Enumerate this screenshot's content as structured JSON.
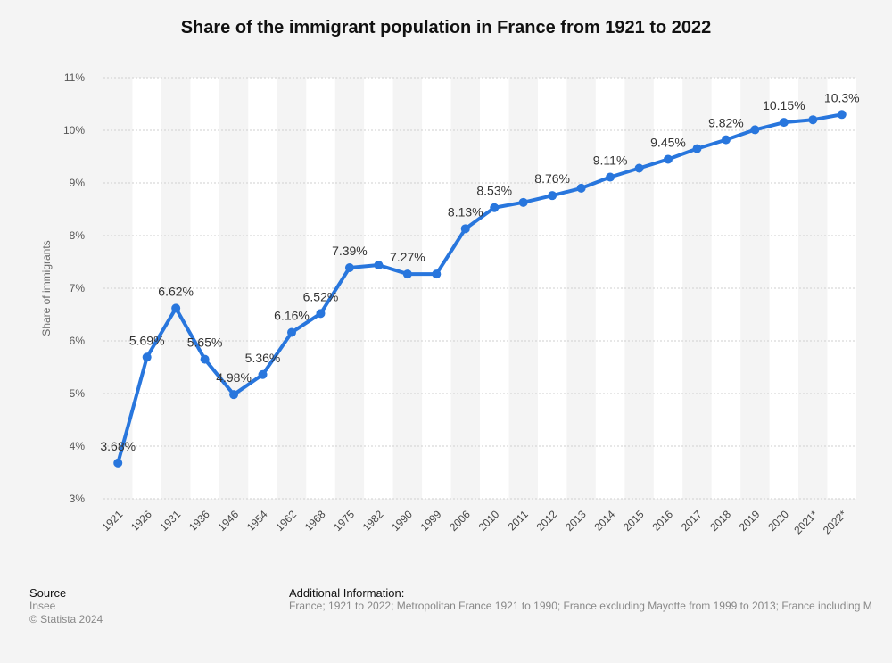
{
  "title": "Share of the immigrant population in France from 1921 to 2022",
  "footer": {
    "source_heading": "Source",
    "source_name": "Insee",
    "copyright": "© Statista 2024",
    "additional_heading": "Additional Information:",
    "additional_text": "France; 1921 to 2022; Metropolitan France 1921 to 1990; France excluding Mayotte from 1999 to 2013; France including M"
  },
  "colors": {
    "line": "#2876dd",
    "band": "#ffffff",
    "grid": "#cfcfcf",
    "background": "#f4f4f4"
  },
  "chart_data": {
    "type": "line",
    "title": "Share of the immigrant population in France from 1921 to 2022",
    "xlabel": "",
    "ylabel": "Share of immigrants",
    "ylim": [
      3,
      11
    ],
    "yticks": [
      "3%",
      "4%",
      "5%",
      "6%",
      "7%",
      "8%",
      "9%",
      "10%",
      "11%"
    ],
    "grid": true,
    "categories": [
      "1921",
      "1926",
      "1931",
      "1936",
      "1946",
      "1954",
      "1962",
      "1968",
      "1975",
      "1982",
      "1990",
      "1999",
      "2006",
      "2010",
      "2011",
      "2012",
      "2013",
      "2014",
      "2015",
      "2016",
      "2017",
      "2018",
      "2019",
      "2020",
      "2021*",
      "2022*"
    ],
    "values": [
      3.68,
      5.69,
      6.62,
      5.65,
      4.98,
      5.36,
      6.16,
      6.52,
      7.39,
      7.44,
      7.27,
      7.27,
      8.13,
      8.53,
      8.63,
      8.76,
      8.9,
      9.11,
      9.28,
      9.45,
      9.65,
      9.82,
      10.01,
      10.15,
      10.2,
      10.3
    ],
    "data_labels": [
      "3.68%",
      "5.69%",
      "6.62%",
      "5.65%",
      "4.98%",
      "5.36%",
      "6.16%",
      "6.52%",
      "7.39%",
      "",
      "7.27%",
      "",
      "8.13%",
      "8.53%",
      "",
      "8.76%",
      "",
      "9.11%",
      "",
      "9.45%",
      "",
      "9.82%",
      "",
      "10.15%",
      "",
      "10.3%"
    ]
  }
}
